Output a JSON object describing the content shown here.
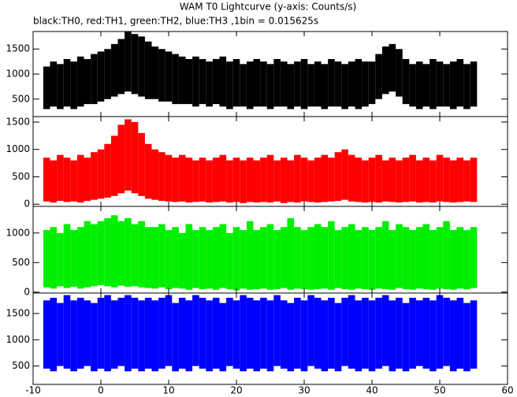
{
  "chart_data": {
    "type": "range",
    "title": "WAM T0 Lightcurve (y-axis: Counts/s)",
    "subtitle": "black:TH0, red:TH1, green:TH2, blue:TH3 ,1bin = 0.015625s",
    "xlim": [
      -10,
      60
    ],
    "xticks": [
      -10,
      0,
      10,
      20,
      30,
      40,
      50,
      60
    ],
    "x": [
      -8,
      -7,
      -6,
      -5,
      -4,
      -3,
      -2,
      -1,
      0,
      1,
      2,
      3,
      4,
      5,
      6,
      7,
      8,
      9,
      10,
      11,
      12,
      13,
      14,
      15,
      16,
      17,
      18,
      19,
      20,
      21,
      22,
      23,
      24,
      25,
      26,
      27,
      28,
      29,
      30,
      31,
      32,
      33,
      34,
      35,
      36,
      37,
      38,
      39,
      40,
      41,
      42,
      43,
      44,
      45,
      46,
      47,
      48,
      49,
      50,
      51,
      52,
      53,
      54,
      55
    ],
    "series": [
      {
        "color": "#000000",
        "ylim": [
          150,
          1850
        ],
        "yticks": [
          500,
          1000,
          1500
        ],
        "high": [
          1150,
          1250,
          1200,
          1300,
          1250,
          1350,
          1300,
          1400,
          1450,
          1500,
          1600,
          1700,
          1850,
          1800,
          1750,
          1650,
          1550,
          1500,
          1450,
          1400,
          1350,
          1300,
          1350,
          1300,
          1250,
          1300,
          1350,
          1250,
          1300,
          1200,
          1250,
          1300,
          1250,
          1200,
          1300,
          1250,
          1200,
          1250,
          1300,
          1200,
          1250,
          1200,
          1300,
          1250,
          1200,
          1250,
          1300,
          1250,
          1250,
          1400,
          1550,
          1600,
          1500,
          1300,
          1200,
          1250,
          1200,
          1300,
          1250,
          1200,
          1250,
          1300,
          1200,
          1250
        ],
        "low": [
          300,
          350,
          300,
          350,
          300,
          350,
          400,
          400,
          450,
          500,
          550,
          600,
          650,
          600,
          550,
          500,
          500,
          450,
          450,
          400,
          400,
          400,
          350,
          400,
          350,
          400,
          350,
          300,
          350,
          350,
          300,
          350,
          350,
          300,
          350,
          350,
          300,
          350,
          300,
          350,
          350,
          300,
          350,
          350,
          300,
          350,
          300,
          350,
          400,
          500,
          600,
          650,
          550,
          400,
          350,
          300,
          350,
          300,
          350,
          350,
          300,
          350,
          300,
          350
        ]
      },
      {
        "color": "#ff0000",
        "ylim": [
          -40,
          1600
        ],
        "yticks": [
          0,
          500,
          1000,
          1500
        ],
        "high": [
          850,
          800,
          900,
          850,
          800,
          900,
          850,
          950,
          1000,
          1100,
          1250,
          1450,
          1550,
          1500,
          1300,
          1100,
          1000,
          950,
          900,
          850,
          900,
          850,
          800,
          850,
          800,
          850,
          900,
          800,
          850,
          800,
          850,
          800,
          850,
          900,
          800,
          850,
          800,
          900,
          850,
          800,
          850,
          900,
          850,
          950,
          1000,
          900,
          850,
          800,
          850,
          900,
          800,
          850,
          800,
          850,
          900,
          800,
          850,
          800,
          900,
          850,
          800,
          850,
          800,
          850
        ],
        "low": [
          50,
          30,
          60,
          40,
          50,
          30,
          60,
          80,
          100,
          120,
          150,
          200,
          250,
          200,
          150,
          100,
          80,
          60,
          50,
          40,
          50,
          30,
          40,
          50,
          30,
          40,
          50,
          30,
          40,
          20,
          40,
          30,
          40,
          30,
          50,
          20,
          40,
          30,
          50,
          40,
          30,
          40,
          50,
          60,
          80,
          50,
          40,
          30,
          40,
          30,
          50,
          40,
          30,
          40,
          50,
          30,
          40,
          30,
          50,
          40,
          30,
          40,
          50,
          40
        ]
      },
      {
        "color": "#00ee00",
        "ylim": [
          -15,
          1450
        ],
        "yticks": [
          0,
          500,
          1000
        ],
        "high": [
          1050,
          1100,
          1000,
          1150,
          1050,
          1100,
          1200,
          1150,
          1200,
          1250,
          1300,
          1200,
          1250,
          1150,
          1200,
          1100,
          1100,
          1150,
          1050,
          1100,
          1000,
          1150,
          1050,
          1100,
          1050,
          1100,
          1150,
          1000,
          1100,
          1050,
          1200,
          1050,
          1100,
          1150,
          1050,
          1100,
          1250,
          1100,
          1050,
          1100,
          1150,
          1100,
          1200,
          1050,
          1100,
          1150,
          1050,
          1100,
          1050,
          1100,
          1200,
          1050,
          1150,
          1100,
          1050,
          1100,
          1150,
          1050,
          1100,
          1200,
          1050,
          1100,
          1050,
          1100
        ],
        "low": [
          80,
          60,
          100,
          70,
          90,
          60,
          80,
          100,
          120,
          100,
          80,
          110,
          90,
          100,
          80,
          70,
          60,
          80,
          50,
          70,
          60,
          40,
          70,
          50,
          60,
          40,
          70,
          50,
          30,
          60,
          40,
          50,
          60,
          40,
          50,
          70,
          40,
          60,
          50,
          40,
          50,
          60,
          40,
          70,
          50,
          40,
          60,
          50,
          40,
          60,
          50,
          40,
          70,
          50,
          40,
          60,
          50,
          40,
          60,
          50,
          40,
          60,
          50,
          70
        ]
      },
      {
        "color": "#0000ff",
        "ylim": [
          150,
          1890
        ],
        "yticks": [
          500,
          1000,
          1500
        ],
        "high": [
          1750,
          1800,
          1700,
          1850,
          1750,
          1800,
          1750,
          1700,
          1800,
          1850,
          1750,
          1800,
          1850,
          1800,
          1750,
          1800,
          1750,
          1800,
          1850,
          1700,
          1800,
          1750,
          1850,
          1800,
          1750,
          1800,
          1700,
          1800,
          1750,
          1850,
          1800,
          1750,
          1800,
          1750,
          1850,
          1750,
          1700,
          1800,
          1750,
          1850,
          1800,
          1750,
          1800,
          1700,
          1800,
          1850,
          1750,
          1800,
          1750,
          1800,
          1850,
          1750,
          1800,
          1700,
          1800,
          1750,
          1800,
          1750,
          1850,
          1800,
          1750,
          1800,
          1700,
          1750
        ],
        "low": [
          450,
          400,
          500,
          450,
          400,
          450,
          500,
          400,
          450,
          400,
          450,
          500,
          400,
          450,
          400,
          450,
          400,
          450,
          500,
          400,
          450,
          400,
          500,
          450,
          400,
          450,
          400,
          500,
          450,
          400,
          450,
          400,
          450,
          400,
          500,
          450,
          400,
          450,
          400,
          500,
          450,
          400,
          450,
          400,
          500,
          450,
          400,
          450,
          400,
          450,
          500,
          400,
          450,
          400,
          450,
          500,
          450,
          400,
          450,
          500,
          400,
          450,
          400,
          450
        ]
      }
    ]
  }
}
